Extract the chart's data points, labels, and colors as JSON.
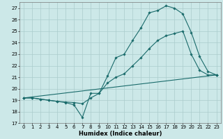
{
  "xlabel": "Humidex (Indice chaleur)",
  "background_color": "#cce8e8",
  "grid_color": "#aacccc",
  "line_color": "#1a6b6b",
  "xlim": [
    -0.5,
    23.5
  ],
  "ylim": [
    17,
    27.5
  ],
  "yticks": [
    17,
    18,
    19,
    20,
    21,
    22,
    23,
    24,
    25,
    26,
    27
  ],
  "xticks": [
    0,
    1,
    2,
    3,
    4,
    5,
    6,
    7,
    8,
    9,
    10,
    11,
    12,
    13,
    14,
    15,
    16,
    17,
    18,
    19,
    20,
    21,
    22,
    23
  ],
  "line1_x": [
    0,
    1,
    2,
    3,
    4,
    5,
    6,
    7,
    8,
    9,
    10,
    11,
    12,
    13,
    14,
    15,
    16,
    17,
    18,
    19,
    20,
    21,
    22,
    23
  ],
  "line1_y": [
    19.2,
    19.2,
    19.1,
    19.0,
    18.9,
    18.8,
    18.6,
    17.5,
    19.6,
    19.6,
    21.1,
    22.7,
    23.0,
    24.2,
    25.3,
    26.6,
    26.8,
    27.2,
    27.0,
    26.5,
    24.9,
    22.8,
    21.5,
    21.2
  ],
  "line2_x": [
    0,
    1,
    2,
    3,
    4,
    5,
    6,
    7,
    8,
    9,
    10,
    11,
    12,
    13,
    14,
    15,
    16,
    17,
    18,
    19,
    20,
    21,
    22,
    23
  ],
  "line2_y": [
    19.2,
    19.2,
    19.1,
    19.0,
    18.9,
    18.85,
    18.8,
    18.7,
    19.2,
    19.6,
    20.5,
    21.0,
    21.3,
    22.0,
    22.7,
    23.5,
    24.2,
    24.6,
    24.8,
    25.0,
    23.0,
    21.6,
    21.2,
    21.2
  ],
  "line3_x": [
    0,
    23
  ],
  "line3_y": [
    19.2,
    21.2
  ],
  "marker_size": 1.8,
  "linewidth": 0.8,
  "tick_fontsize": 5.0,
  "xlabel_fontsize": 6.0
}
